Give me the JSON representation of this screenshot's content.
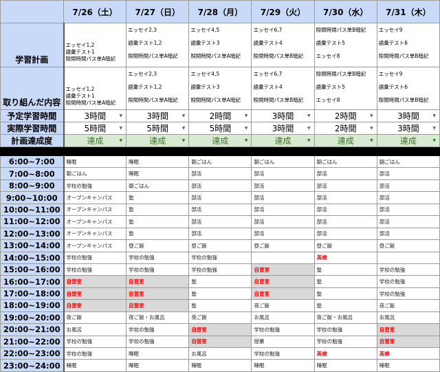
{
  "row_labels": {
    "plan": "学習計画",
    "done": "取り組んだ内容",
    "planned_hours": "予定学習時間",
    "actual_hours": "実際学習時間",
    "achievement": "計画達成度"
  },
  "colors": {
    "header_bg": "#c9daf8",
    "achieved_bg": "#d9ead3",
    "achieved_text": "#38761d",
    "highlight_text": "#ff0000",
    "highlight_bg": "#d9d9d9"
  },
  "highlight_items": [
    "自習室",
    "英検"
  ],
  "time_slots": [
    "6:00~7:00",
    "7:00~8:00",
    "8:00~9:00",
    "9:00~10:00",
    "10:00~11:00",
    "11:00~12:00",
    "12:00~13:00",
    "13:00~14:00",
    "14:00~15:00",
    "15:00~16:00",
    "16:00~17:00",
    "17:00~18:00",
    "18:00~19:00",
    "19:00~20:00",
    "20:00~21:00",
    "21:00~22:00",
    "22:00~23:00",
    "23:00~24:00"
  ],
  "days": [
    {
      "date": "7/26（土）",
      "plan": [
        "エッセイ1,2",
        "語彙テスト1",
        "隙間時間パス単A暗記"
      ],
      "done": [
        "エッセイ1,2",
        "語彙テスト1",
        "隙間時間パス単A暗記"
      ],
      "planned_hours": "3時間",
      "actual_hours": "5時間",
      "achievement": "達成",
      "schedule": [
        "睡眠",
        "朝ごはん",
        "学校の勉強",
        "オープンキャンパス",
        "オープンキャンパス",
        "オープンキャンパス",
        "オープンキャンパス",
        "オープンキャンパス",
        "学校の勉強",
        "学校の勉強",
        "自習室",
        "自習室",
        "自習室",
        "夜ご飯",
        "お風呂",
        "学校の勉強",
        "学校の勉強",
        "睡眠"
      ]
    },
    {
      "date": "7/27（日）",
      "plan": [
        "エッセイ2,3",
        "語彙テスト1,2",
        "隙間時間パス単A暗記"
      ],
      "done": [
        "エッセイ2,3",
        "語彙テスト1,2",
        "隙間時間パス単A暗記"
      ],
      "planned_hours": "3時間",
      "actual_hours": "5時間",
      "achievement": "達成",
      "schedule": [
        "睡眠",
        "睡眠",
        "朝ごはん",
        "塾",
        "塾",
        "塾",
        "塾",
        "昼ご飯",
        "学校の勉強",
        "学校の勉強",
        "自習室",
        "自習室",
        "自習室",
        "夜ご飯・お風呂",
        "学校の勉強",
        "学校の勉強",
        "睡眠",
        "睡眠"
      ]
    },
    {
      "date": "7/28（月）",
      "plan": [
        "エッセイ4,5",
        "語彙テスト3",
        "隙間時間パス単A暗記"
      ],
      "done": [
        "エッセイ4,5",
        "語彙テスト3",
        "隙間時間パス単A暗記"
      ],
      "planned_hours": "2時間",
      "actual_hours": "5時間",
      "achievement": "達成",
      "schedule": [
        "朝ごはん",
        "部活",
        "部活",
        "部活",
        "部活",
        "部活",
        "部活",
        "昼ご飯",
        "学校の勉強",
        "学校の勉強",
        "塾",
        "塾",
        "塾",
        "夜ご飯",
        "自習室",
        "自習室",
        "お風呂",
        "睡眠"
      ]
    },
    {
      "date": "7/29（火）",
      "plan": [
        "エッセイ6,7",
        "語彙テスト4",
        "隙間時間パス単B暗記"
      ],
      "done": [
        "エッセイ6,7",
        "語彙テスト4",
        "隙間時間パス単B暗記"
      ],
      "planned_hours": "3時間",
      "actual_hours": "3時間",
      "achievement": "達成",
      "schedule": [
        "朝ごはん",
        "部活",
        "部活",
        "部活",
        "部活",
        "部活",
        "部活",
        "昼ご飯",
        "",
        "自習室",
        "自習室",
        "自習室",
        "夜ご飯",
        "お風呂",
        "学校の勉強",
        "授業",
        "学校の勉強",
        "睡眠"
      ]
    },
    {
      "date": "7/30（水）",
      "plan": [
        "隙間時間パス単B暗記",
        "語彙テスト5",
        "エッセイ8"
      ],
      "done": [
        "隙間時間パス単B暗記",
        "語彙テスト5",
        "エッセイ8"
      ],
      "planned_hours": "2時間",
      "actual_hours": "2時間",
      "achievement": "達成",
      "schedule": [
        "朝ごはん",
        "部活",
        "部活",
        "部活",
        "部活",
        "部活",
        "部活",
        "昼ご飯",
        "英検",
        "塾",
        "塾",
        "塾",
        "塾",
        "夜ご飯・お風呂",
        "学校の勉強",
        "学校の勉強",
        "英検",
        "睡眠"
      ]
    },
    {
      "date": "7/31（木）",
      "plan": [
        "エッセイ9",
        "語彙テスト6",
        "隙間時間パス単B暗記"
      ],
      "done": [
        "エッセイ9",
        "語彙テスト6",
        "隙間時間パス単B暗記"
      ],
      "planned_hours": "3時間",
      "actual_hours": "3時間",
      "achievement": "達成",
      "schedule": [
        "朝ごはん",
        "部活",
        "部活",
        "部活",
        "部活",
        "部活",
        "部活",
        "昼ご飯",
        "",
        "学校の勉強",
        "学校の勉強",
        "学校の勉強",
        "夜ご飯",
        "お風呂",
        "自習室",
        "自習室",
        "英検",
        "睡眠"
      ]
    }
  ]
}
